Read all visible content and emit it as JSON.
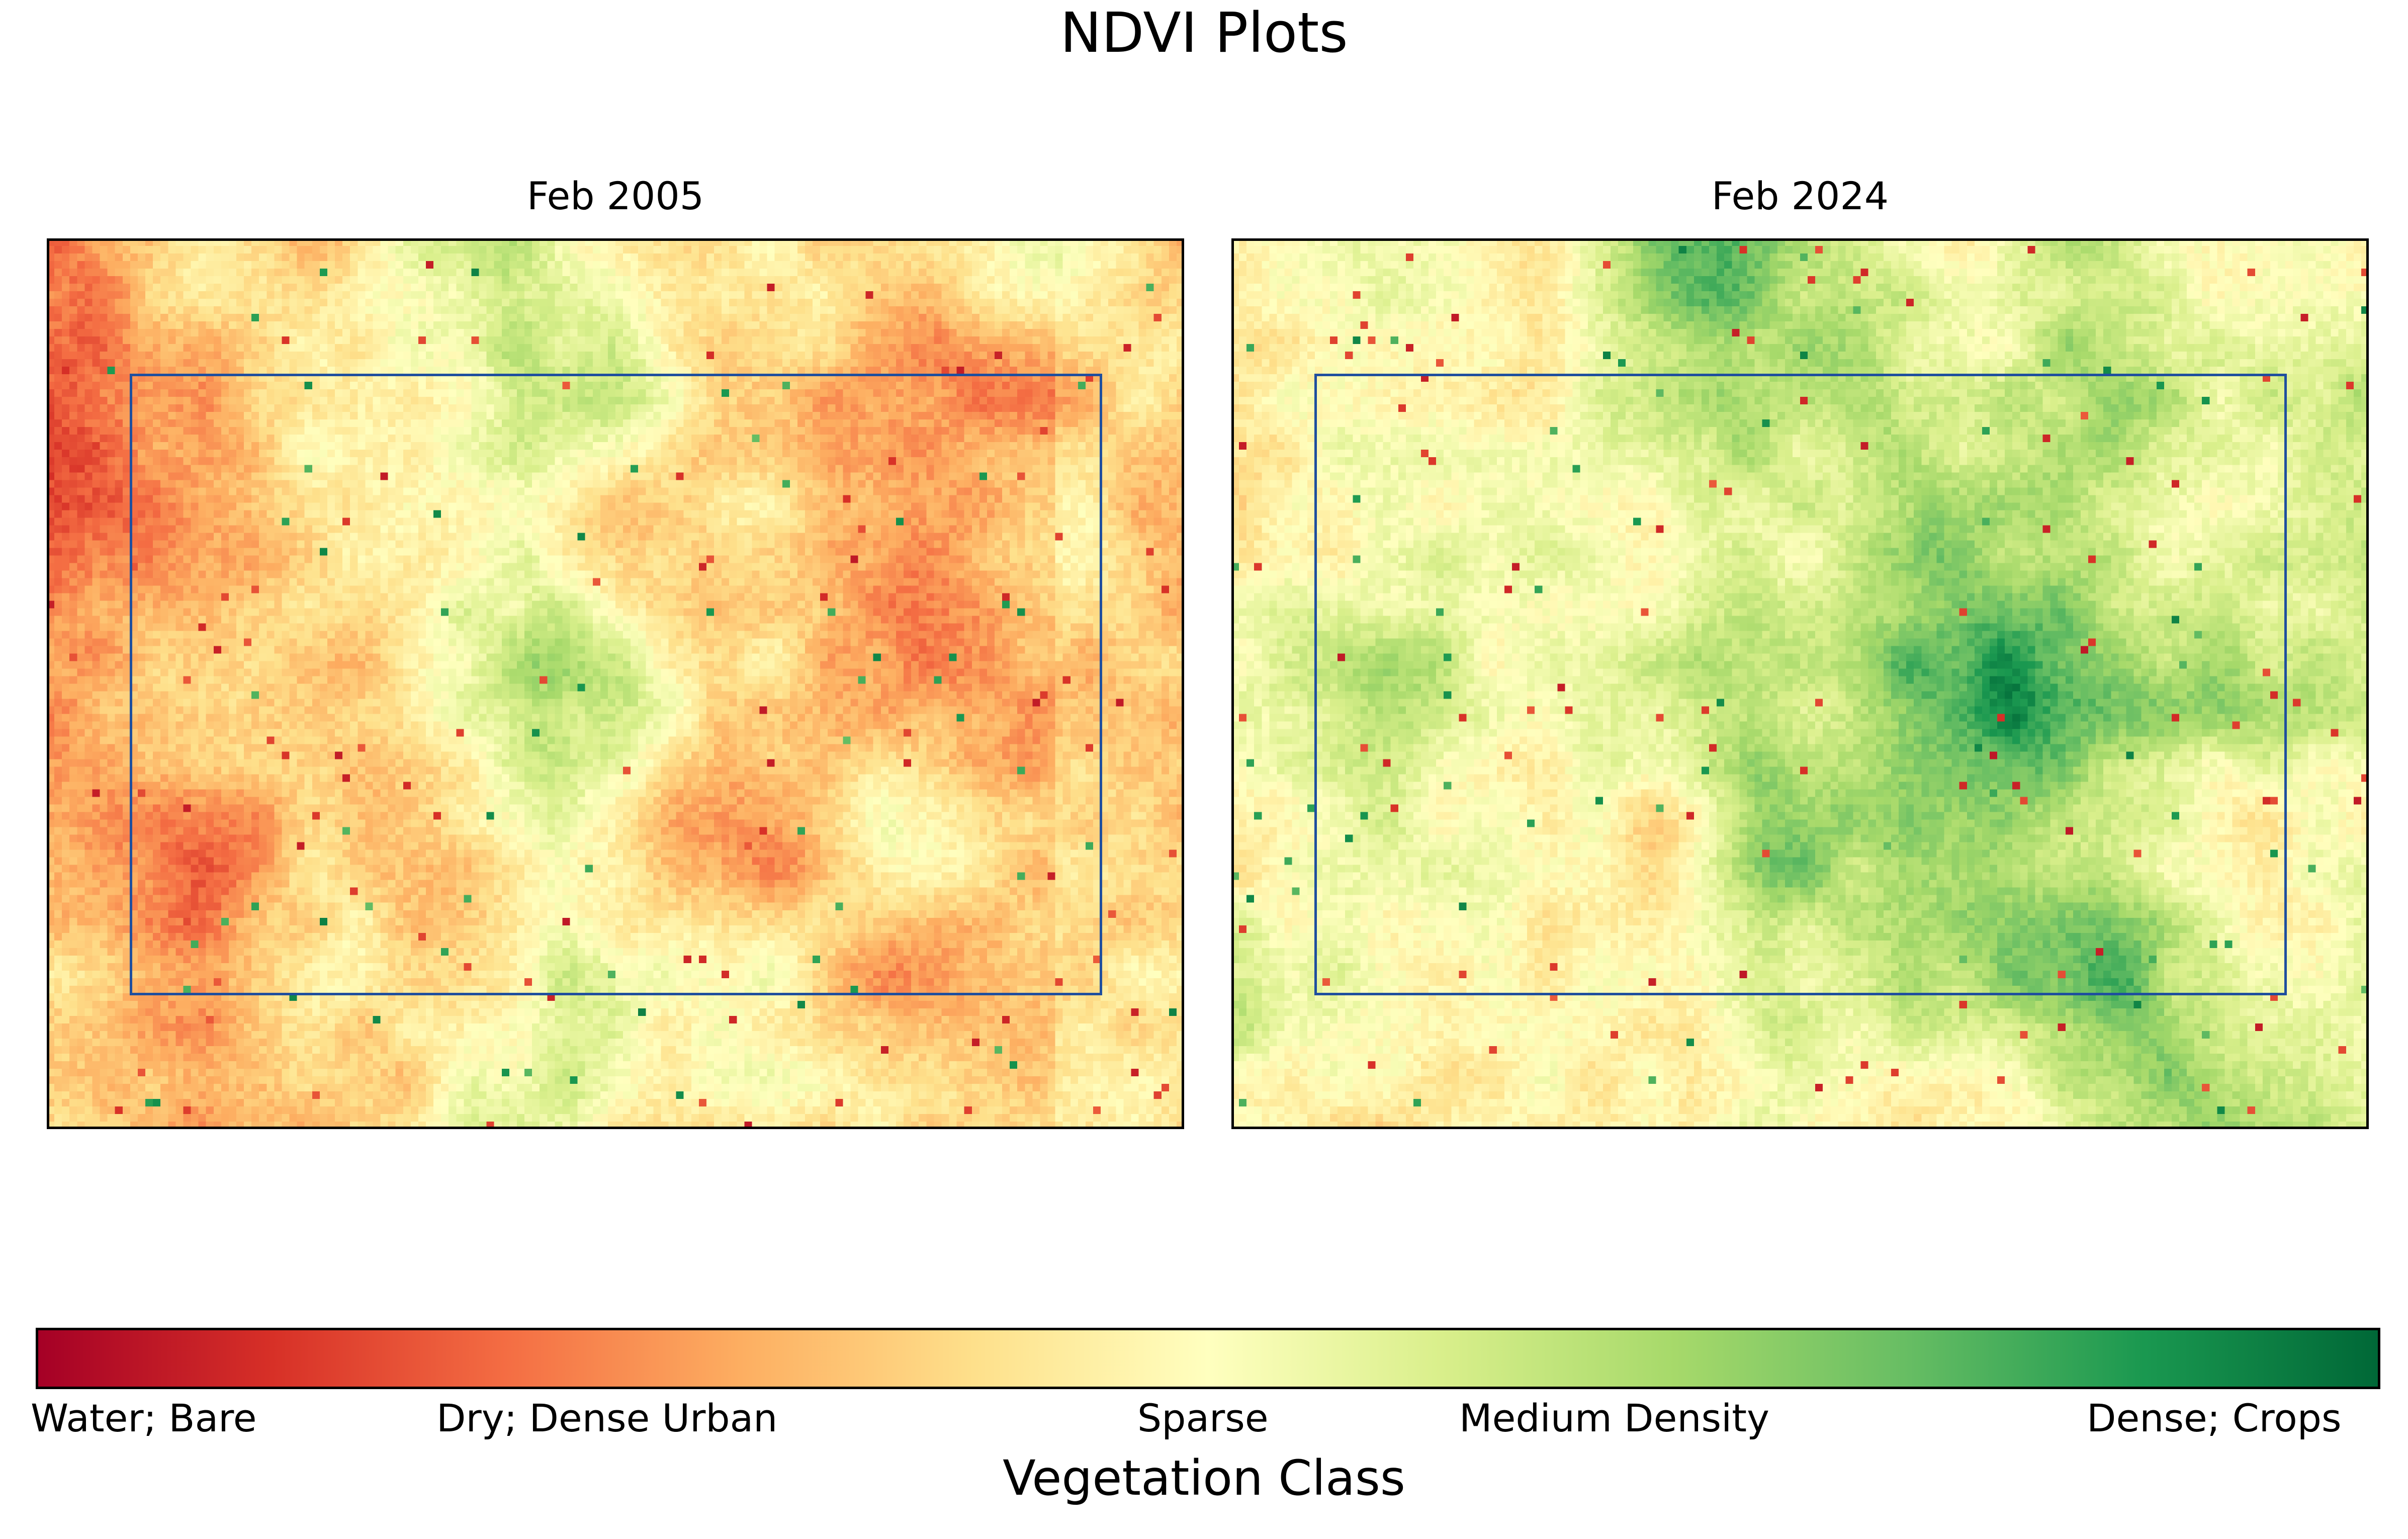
{
  "chart_data": {
    "type": "heatmap",
    "title": "NDVI Plots",
    "colormap": "RdYlGn",
    "panels": [
      {
        "title": "Feb 2005",
        "dominant_class": "Dry; Dense Urban",
        "mean_level": 0.38,
        "vegetation_band": "central green strip running north-to-south",
        "has_region_box": true,
        "region_box_color": "#1f4f9e"
      },
      {
        "title": "Feb 2024",
        "dominant_class": "Sparse",
        "mean_level": 0.56,
        "vegetation_band": "green corridor running northwest-to-southeast",
        "has_region_box": true,
        "region_box_color": "#1f4f9e"
      }
    ],
    "colorbar": {
      "label": "Vegetation Class",
      "tick_labels": [
        "Water; Bare",
        "Dry; Dense Urban",
        "Sparse",
        "Medium Density",
        "Dense; Crops"
      ],
      "tick_positions": [
        0.0,
        0.25,
        0.5,
        0.7,
        1.0
      ],
      "colors": [
        "#a50026",
        "#d73027",
        "#f46d43",
        "#fdae61",
        "#fee08b",
        "#ffffbf",
        "#d9ef8b",
        "#a6d96a",
        "#66bd63",
        "#1a9850",
        "#006837"
      ]
    }
  }
}
